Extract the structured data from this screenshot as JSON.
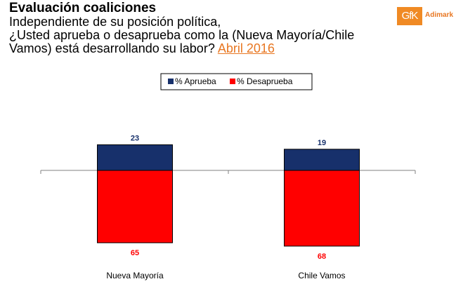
{
  "title": "Evaluación coaliciones",
  "subtitle_line1": "Independiente de su posición política,",
  "subtitle_line2": "¿Usted aprueba o desaprueba como la (Nueva Mayoría/Chile",
  "subtitle_line3": "Vamos) está desarrollando su labor?",
  "subtitle_date": "Abril 2016",
  "logo": {
    "mark": "GfK",
    "name": "Adimark"
  },
  "colors": {
    "aprueba": "#17306b",
    "desaprueba": "#ff0000",
    "accent": "#e87722"
  },
  "chart_data": {
    "type": "bar",
    "stacked": "diverging",
    "categories": [
      "Nueva Mayoría",
      "Chile Vamos"
    ],
    "series": [
      {
        "name": "% Aprueba",
        "values": [
          23,
          19
        ],
        "direction": "up"
      },
      {
        "name": "% Desaprueba",
        "values": [
          65,
          68
        ],
        "direction": "down"
      }
    ],
    "legend_position": "top-center",
    "title": "",
    "xlabel": "",
    "ylabel": ""
  }
}
